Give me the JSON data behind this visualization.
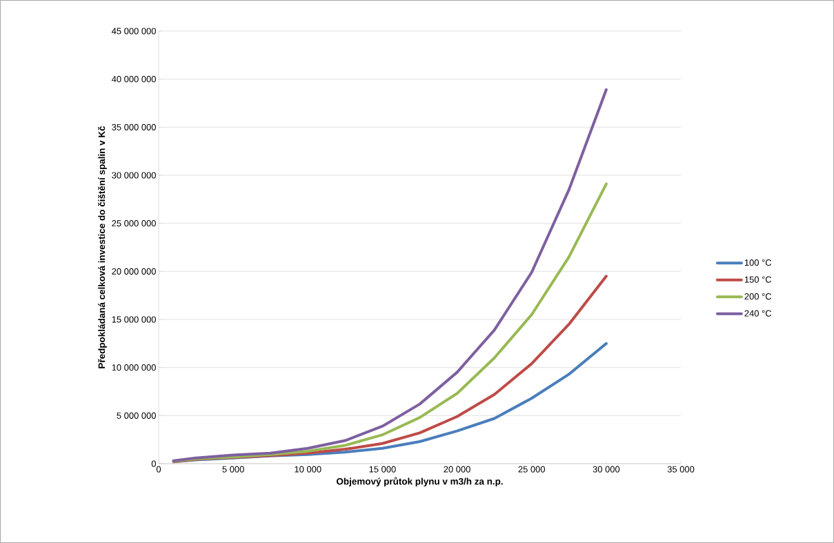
{
  "chart_data": {
    "type": "line",
    "xlabel": "Objemový průtok plynu v m3/h za n.p.",
    "ylabel": "Předpokládaná celková investice do čištění spalin v Kč",
    "xlim": [
      0,
      35000
    ],
    "ylim": [
      0,
      45000000
    ],
    "xticks": [
      0,
      {
        "value": 5000,
        "label": "5 000"
      },
      {
        "value": 10000,
        "label": "10 000"
      },
      {
        "value": 15000,
        "label": "15 000"
      },
      {
        "value": 20000,
        "label": "20 000"
      },
      {
        "value": 25000,
        "label": "25 000"
      },
      {
        "value": 30000,
        "label": "30 000"
      },
      {
        "value": 35000,
        "label": "35 000"
      }
    ],
    "yticks": [
      0,
      {
        "value": 5000000,
        "label": "5 000 000"
      },
      {
        "value": 10000000,
        "label": "10 000 000"
      },
      {
        "value": 15000000,
        "label": "15 000 000"
      },
      {
        "value": 20000000,
        "label": "20 000 000"
      },
      {
        "value": 25000000,
        "label": "25 000 000"
      },
      {
        "value": 30000000,
        "label": "30 000 000"
      },
      {
        "value": 35000000,
        "label": "35 000 000"
      },
      {
        "value": 40000000,
        "label": "40 000 000"
      },
      {
        "value": 45000000,
        "label": "45 000 000"
      }
    ],
    "x": [
      1000,
      2500,
      5000,
      7500,
      10000,
      12500,
      15000,
      17500,
      20000,
      22500,
      25000,
      27500,
      30000
    ],
    "grid": "y",
    "legend": "right",
    "marker": "none",
    "line_style": "solid",
    "series": [
      {
        "name": "100 °C",
        "color": "#4a7ebb",
        "values": [
          200000,
          400000,
          600000,
          800000,
          950000,
          1200000,
          1600000,
          2300000,
          3400000,
          4700000,
          6800000,
          9300000,
          12500000
        ]
      },
      {
        "name": "150 °C",
        "color": "#be4b48",
        "values": [
          200000,
          450000,
          650000,
          850000,
          1100000,
          1500000,
          2100000,
          3200000,
          4900000,
          7200000,
          10400000,
          14500000,
          19500000
        ]
      },
      {
        "name": "200 °C",
        "color": "#98b954",
        "values": [
          250000,
          500000,
          700000,
          950000,
          1300000,
          1900000,
          3000000,
          4800000,
          7300000,
          11000000,
          15500000,
          21500000,
          29100000
        ]
      },
      {
        "name": "240 °C",
        "color": "#7d60a0",
        "values": [
          300000,
          600000,
          900000,
          1100000,
          1600000,
          2400000,
          3900000,
          6200000,
          9500000,
          13900000,
          19900000,
          28500000,
          38900000
        ]
      }
    ]
  }
}
